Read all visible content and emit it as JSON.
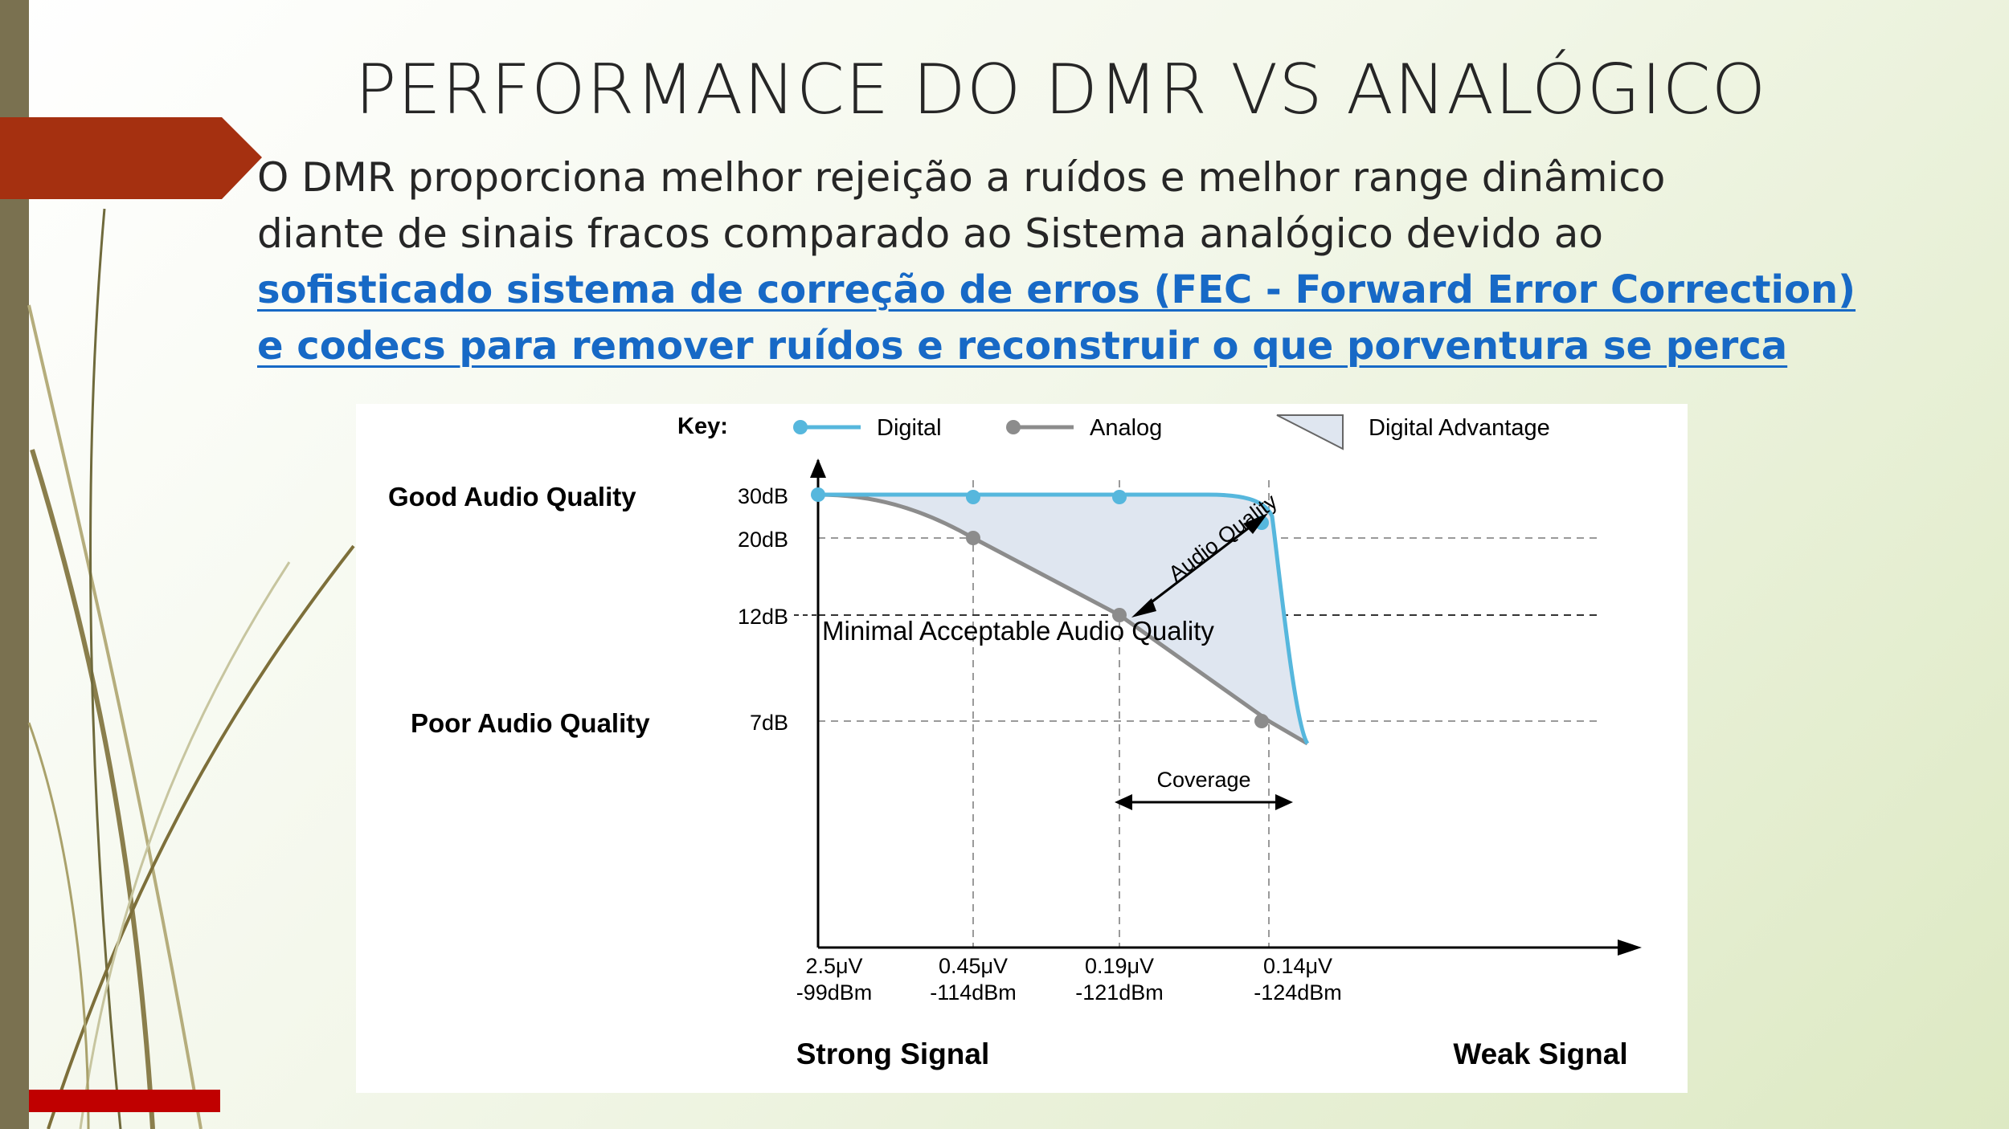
{
  "slide": {
    "title": "PERFORMANCE DO DMR VS ANALÓGICO",
    "body_line_1": "O DMR proporciona melhor rejeição a ruídos e melhor range dinâmico",
    "body_line_2": "diante de sinais fracos comparado ao Sistema analógico devido ao",
    "link_line_1": "sofisticado sistema de correção de erros (FEC - Forward Error Correction)",
    "link_line_2": "e codecs para remover ruídos e reconstruir o que porventura se perca",
    "link_color": "#1769c6",
    "accent_color": "#a53010"
  },
  "chart_data": {
    "type": "line",
    "key_label": "Key:",
    "legend": [
      {
        "name": "Digital",
        "color": "#56b7dd"
      },
      {
        "name": "Analog",
        "color": "#8c8c8c"
      },
      {
        "name": "Digital Advantage",
        "color": "#dfe6f0"
      }
    ],
    "x_ticks": [
      {
        "line1": "2.5μV",
        "line2": "-99dBm"
      },
      {
        "line1": "0.45μV",
        "line2": "-114dBm"
      },
      {
        "line1": "0.19μV",
        "line2": "-121dBm"
      },
      {
        "line1": "0.14μV",
        "line2": "-124dBm"
      }
    ],
    "y_ticks": [
      "30dB",
      "20dB",
      "12dB",
      "7dB"
    ],
    "y_quality_labels": {
      "good": "Good Audio Quality",
      "poor": "Poor Audio Quality"
    },
    "x_end_labels": {
      "strong": "Strong Signal",
      "weak": "Weak Signal"
    },
    "series": [
      {
        "name": "Digital",
        "points": [
          [
            "-99dBm",
            30
          ],
          [
            "-114dBm",
            30
          ],
          [
            "-121dBm",
            30
          ],
          [
            "-124dBm",
            28
          ]
        ]
      },
      {
        "name": "Analog",
        "points": [
          [
            "-99dBm",
            30
          ],
          [
            "-114dBm",
            20
          ],
          [
            "-121dBm",
            12
          ],
          [
            "-124dBm",
            7
          ]
        ]
      }
    ],
    "annotations": {
      "min_acceptable": "Minimal Acceptable Audio Quality",
      "audio_quality": "Audio Quality",
      "coverage": "Coverage"
    },
    "grid": "dashed"
  }
}
